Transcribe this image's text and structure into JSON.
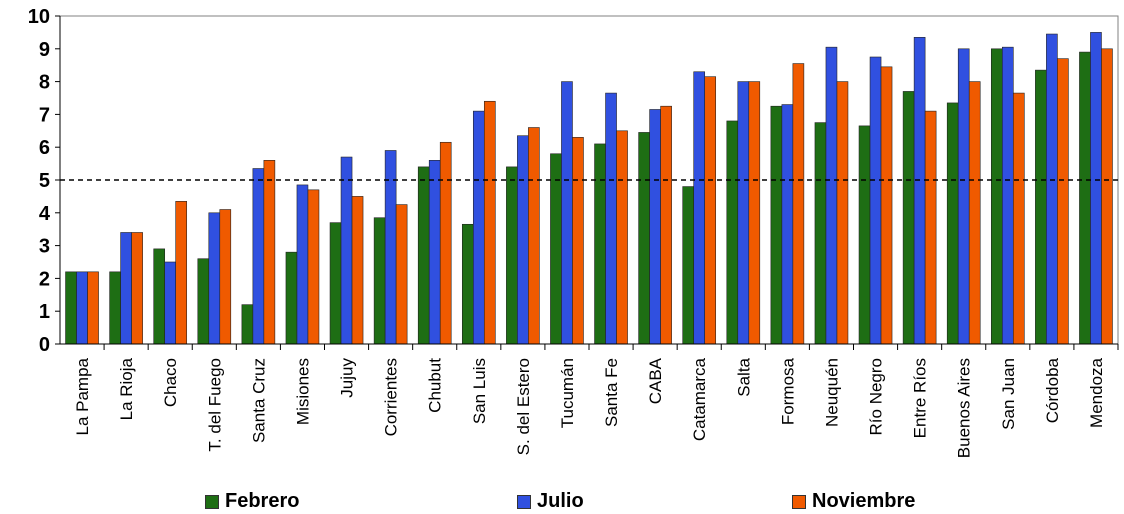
{
  "chart_data": {
    "type": "bar",
    "title": "",
    "xlabel": "",
    "ylabel": "",
    "ylim": [
      0,
      10
    ],
    "yticks": [
      "0",
      "1",
      "2",
      "3",
      "4",
      "5",
      "6",
      "7",
      "8",
      "9",
      "10"
    ],
    "reference_line": 5,
    "legend_position": "bottom",
    "grid": false,
    "categories": [
      "La Pampa",
      "La Rioja",
      "Chaco",
      "T. del Fuego",
      "Santa Cruz",
      "Misiones",
      "Jujuy",
      "Corrientes",
      "Chubut",
      "San Luis",
      "S. del Estero",
      "Tucumán",
      "Santa Fe",
      "CABA",
      "Catamarca",
      "Salta",
      "Formosa",
      "Neuquén",
      "Río Negro",
      "Entre Ríos",
      "Buenos Aires",
      "San Juan",
      "Córdoba",
      "Mendoza"
    ],
    "series": [
      {
        "name": "Febrero",
        "color": "#1e6e14",
        "values": [
          2.2,
          2.2,
          2.9,
          2.6,
          1.2,
          2.8,
          3.7,
          3.85,
          5.4,
          3.65,
          5.4,
          5.8,
          6.1,
          6.45,
          4.8,
          6.8,
          7.25,
          6.75,
          6.65,
          7.7,
          7.35,
          9.0,
          8.35,
          8.9
        ]
      },
      {
        "name": "Julio",
        "color": "#3050e0",
        "values": [
          2.2,
          3.4,
          2.5,
          4.0,
          5.35,
          4.85,
          5.7,
          5.9,
          5.6,
          7.1,
          6.35,
          8.0,
          7.65,
          7.15,
          8.3,
          8.0,
          7.3,
          9.05,
          8.75,
          9.35,
          9.0,
          9.05,
          9.45,
          9.5
        ]
      },
      {
        "name": "Noviembre",
        "color": "#f05a00",
        "values": [
          2.2,
          3.4,
          4.35,
          4.1,
          5.6,
          4.7,
          4.5,
          4.25,
          6.15,
          7.4,
          6.6,
          6.3,
          6.5,
          7.25,
          8.15,
          8.0,
          8.55,
          8.0,
          8.45,
          7.1,
          8.0,
          7.65,
          8.7,
          9.0
        ]
      }
    ]
  }
}
